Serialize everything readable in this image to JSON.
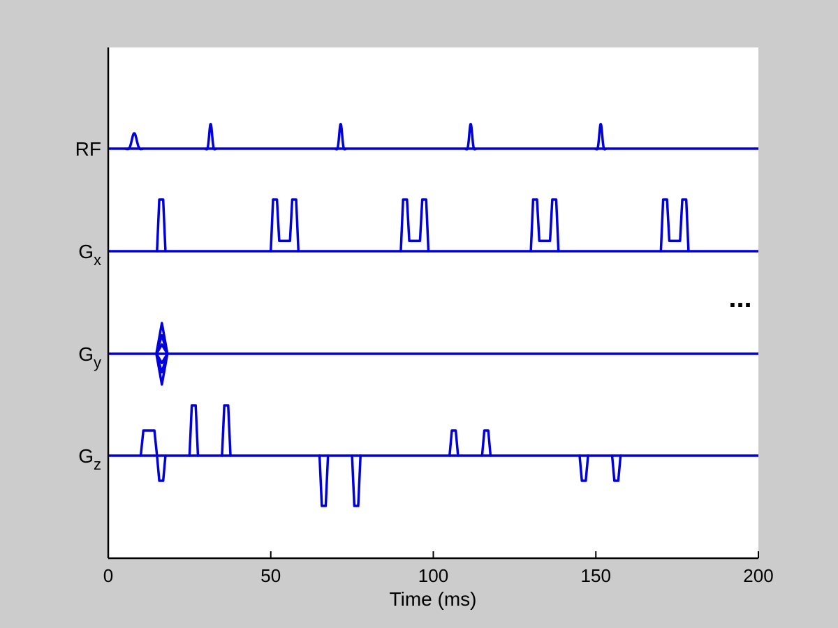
{
  "chart_data": {
    "type": "line",
    "title": "",
    "xlabel": "Time (ms)",
    "ylabel": "",
    "xlim": [
      0,
      200
    ],
    "xticks": [
      0,
      50,
      100,
      150,
      200
    ],
    "grid": false,
    "legend": "none",
    "line_color": "#0000dd",
    "background_color": "#ffffff",
    "continuation": "...",
    "series": [
      {
        "label_main": "RF",
        "label_sub": "",
        "events": [
          {
            "shape": "sinc",
            "t": 8.0,
            "width": 5.0,
            "amp": 0.5
          },
          {
            "shape": "sinc",
            "t": 31.5,
            "width": 3.0,
            "amp": 0.8
          },
          {
            "shape": "sinc",
            "t": 71.5,
            "width": 3.0,
            "amp": 0.8
          },
          {
            "shape": "sinc",
            "t": 111.5,
            "width": 3.0,
            "amp": 0.8
          },
          {
            "shape": "sinc",
            "t": 151.5,
            "width": 3.0,
            "amp": 0.8
          }
        ]
      },
      {
        "label_main": "G",
        "label_sub": "x",
        "events": [
          {
            "shape": "trap",
            "t0": 15.0,
            "t1": 17.6,
            "ramp": 0.7,
            "amp": 1.0
          },
          {
            "shape": "pair",
            "t0": 50.0,
            "t1": 58.5,
            "ramp": 0.7,
            "lobe": 2.6,
            "amp": 1.0,
            "mid": 0.2
          },
          {
            "shape": "pair",
            "t0": 90.0,
            "t1": 98.5,
            "ramp": 0.7,
            "lobe": 2.6,
            "amp": 1.0,
            "mid": 0.2
          },
          {
            "shape": "pair",
            "t0": 130.0,
            "t1": 138.5,
            "ramp": 0.7,
            "lobe": 2.6,
            "amp": 1.0,
            "mid": 0.2
          },
          {
            "shape": "pair",
            "t0": 170.0,
            "t1": 178.5,
            "ramp": 0.7,
            "lobe": 2.6,
            "amp": 1.0,
            "mid": 0.2
          }
        ]
      },
      {
        "label_main": "G",
        "label_sub": "y",
        "events": [
          {
            "shape": "table",
            "t0": 14.8,
            "t1": 18.2,
            "amp_levels": [
              1.0,
              0.6,
              0.3,
              -0.3,
              -0.6,
              -1.0
            ]
          }
        ]
      },
      {
        "label_main": "G",
        "label_sub": "z",
        "events": [
          {
            "shape": "trap",
            "t0": 10.0,
            "t1": 15.0,
            "ramp": 0.8,
            "amp": 0.5
          },
          {
            "shape": "trap",
            "t0": 15.0,
            "t1": 17.6,
            "ramp": 0.7,
            "amp": -0.5
          },
          {
            "shape": "trap",
            "t0": 25.0,
            "t1": 27.6,
            "ramp": 0.7,
            "amp": 1.0
          },
          {
            "shape": "trap",
            "t0": 35.0,
            "t1": 37.6,
            "ramp": 0.7,
            "amp": 1.0
          },
          {
            "shape": "trap",
            "t0": 65.0,
            "t1": 67.6,
            "ramp": 0.7,
            "amp": -1.0
          },
          {
            "shape": "trap",
            "t0": 75.0,
            "t1": 77.6,
            "ramp": 0.7,
            "amp": -1.0
          },
          {
            "shape": "trap",
            "t0": 105.0,
            "t1": 107.6,
            "ramp": 0.7,
            "amp": 0.5
          },
          {
            "shape": "trap",
            "t0": 115.0,
            "t1": 117.6,
            "ramp": 0.7,
            "amp": 0.5
          },
          {
            "shape": "trap",
            "t0": 145.0,
            "t1": 147.6,
            "ramp": 0.7,
            "amp": -0.5
          },
          {
            "shape": "trap",
            "t0": 155.0,
            "t1": 157.6,
            "ramp": 0.7,
            "amp": -0.5
          }
        ]
      }
    ]
  }
}
